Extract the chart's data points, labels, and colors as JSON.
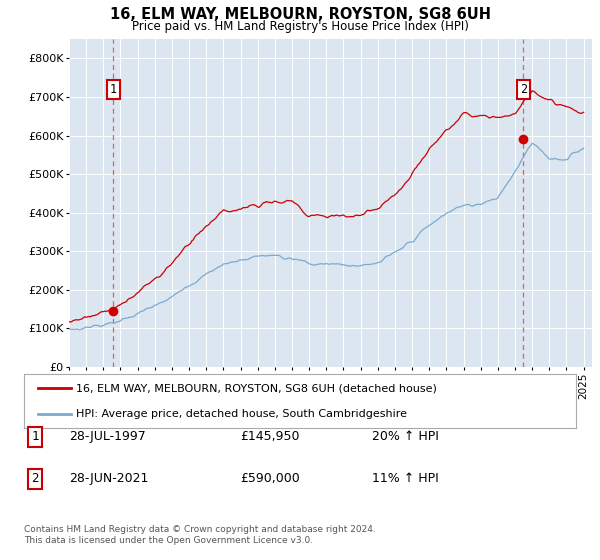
{
  "title": "16, ELM WAY, MELBOURN, ROYSTON, SG8 6UH",
  "subtitle": "Price paid vs. HM Land Registry's House Price Index (HPI)",
  "ylabel_ticks": [
    "£0",
    "£100K",
    "£200K",
    "£300K",
    "£400K",
    "£500K",
    "£600K",
    "£700K",
    "£800K"
  ],
  "ytick_values": [
    0,
    100000,
    200000,
    300000,
    400000,
    500000,
    600000,
    700000,
    800000
  ],
  "ylim": [
    0,
    850000
  ],
  "xlim_start": 1995.0,
  "xlim_end": 2025.5,
  "background_color": "#dce6f1",
  "plot_bg_color": "#dce6f1",
  "red_line_color": "#cc0000",
  "blue_line_color": "#7aaad0",
  "grid_color": "#ffffff",
  "dashed_line_color": "#e06060",
  "marker1_x": 1997.58,
  "marker1_y": 145950,
  "marker2_x": 2021.49,
  "marker2_y": 590000,
  "ann1_y_chart": 720000,
  "ann2_y_chart": 720000,
  "legend_label1": "16, ELM WAY, MELBOURN, ROYSTON, SG8 6UH (detached house)",
  "legend_label2": "HPI: Average price, detached house, South Cambridgeshire",
  "table_rows": [
    [
      "1",
      "28-JUL-1997",
      "£145,950",
      "20% ↑ HPI"
    ],
    [
      "2",
      "28-JUN-2021",
      "£590,000",
      "11% ↑ HPI"
    ]
  ],
  "footer": "Contains HM Land Registry data © Crown copyright and database right 2024.\nThis data is licensed under the Open Government Licence v3.0.",
  "x_tick_years": [
    1995,
    1996,
    1997,
    1998,
    1999,
    2000,
    2001,
    2002,
    2003,
    2004,
    2005,
    2006,
    2007,
    2008,
    2009,
    2010,
    2011,
    2012,
    2013,
    2014,
    2015,
    2016,
    2017,
    2018,
    2019,
    2020,
    2021,
    2022,
    2023,
    2024,
    2025
  ],
  "hpi_key_years": [
    1995.0,
    1996.0,
    1997.0,
    1998.0,
    1999.0,
    2000.0,
    2001.0,
    2002.0,
    2003.0,
    2004.0,
    2005.0,
    2006.0,
    2007.0,
    2008.0,
    2009.0,
    2010.0,
    2011.0,
    2012.0,
    2013.0,
    2014.0,
    2015.0,
    2016.0,
    2017.0,
    2018.0,
    2019.0,
    2020.0,
    2021.0,
    2022.0,
    2023.0,
    2024.0,
    2025.0
  ],
  "hpi_key_vals": [
    97000,
    103000,
    112000,
    122000,
    140000,
    165000,
    185000,
    210000,
    240000,
    262000,
    270000,
    280000,
    290000,
    285000,
    265000,
    268000,
    265000,
    260000,
    270000,
    295000,
    325000,
    365000,
    395000,
    415000,
    420000,
    435000,
    505000,
    580000,
    540000,
    535000,
    570000
  ],
  "pp_key_years": [
    1995.0,
    1996.0,
    1997.0,
    1998.0,
    1999.0,
    2000.0,
    2001.0,
    2002.0,
    2003.0,
    2004.0,
    2005.0,
    2006.0,
    2007.0,
    2008.0,
    2009.0,
    2010.0,
    2011.0,
    2012.0,
    2013.0,
    2014.0,
    2015.0,
    2016.0,
    2017.0,
    2018.0,
    2019.0,
    2020.0,
    2021.0,
    2022.0,
    2023.0,
    2024.0,
    2025.0
  ],
  "pp_key_vals": [
    118000,
    125000,
    138000,
    158000,
    188000,
    225000,
    268000,
    310000,
    355000,
    390000,
    395000,
    405000,
    420000,
    415000,
    375000,
    375000,
    378000,
    380000,
    395000,
    430000,
    480000,
    545000,
    600000,
    635000,
    645000,
    645000,
    655000,
    710000,
    685000,
    670000,
    660000
  ],
  "noise_seed": 7
}
